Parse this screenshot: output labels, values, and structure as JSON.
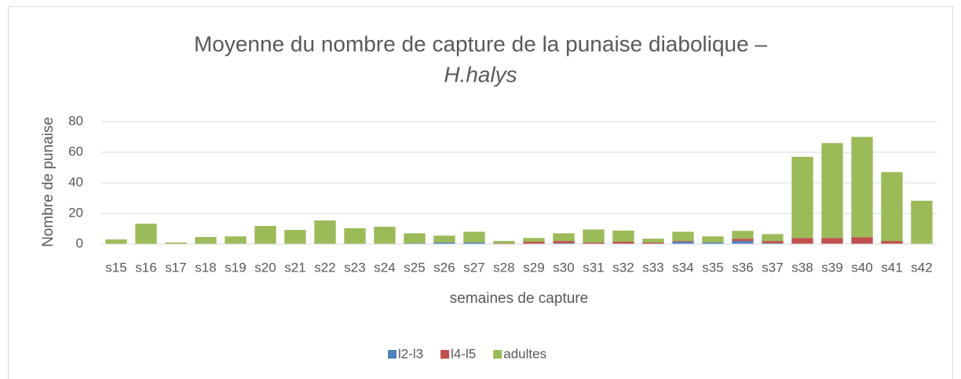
{
  "chart_data": {
    "type": "stacked_bar",
    "title": "Moyenne du nombre de capture de la punaise diabolique –",
    "subtitle": "H.halys",
    "x_label": "semaines de capture",
    "y_label": "Nombre de punaise",
    "categories": [
      "s15",
      "s16",
      "s17",
      "s18",
      "s19",
      "s20",
      "s21",
      "s22",
      "s23",
      "s24",
      "s25",
      "s26",
      "s27",
      "s28",
      "s29",
      "s30",
      "s31",
      "s32",
      "s33",
      "s34",
      "s35",
      "s36",
      "s37",
      "s38",
      "s39",
      "s40",
      "s41",
      "s42"
    ],
    "series": [
      {
        "name": "l2-l3",
        "color": "#4f81bd",
        "values": [
          0,
          0,
          0,
          0,
          0,
          0,
          0,
          0,
          0,
          0,
          0.5,
          1,
          1,
          0,
          0,
          0.5,
          0,
          0,
          0,
          1.5,
          1,
          2,
          0.5,
          0,
          0,
          0,
          0,
          0
        ]
      },
      {
        "name": "l4-l5",
        "color": "#c0504d",
        "values": [
          0,
          0,
          0,
          0,
          0,
          0,
          0,
          0,
          0,
          0,
          0,
          0,
          0,
          0.5,
          1.5,
          1.5,
          1,
          1.5,
          1,
          0.5,
          0,
          1.5,
          1.5,
          4,
          4,
          4.5,
          2,
          0
        ]
      },
      {
        "name": "adultes",
        "color": "#9bbb59",
        "values": [
          3,
          13.3,
          1,
          4.6,
          5,
          11.8,
          9.2,
          15.4,
          10.3,
          11.3,
          6.5,
          4.5,
          7,
          1.5,
          2.5,
          5,
          8.5,
          7.3,
          2.5,
          6,
          4,
          5.1,
          4.5,
          53,
          62,
          65.5,
          45,
          28.3
        ]
      }
    ],
    "ylim": [
      0,
      80
    ],
    "yticks": [
      0,
      20,
      40,
      60,
      80
    ],
    "grid": true,
    "legend": "bottom"
  }
}
